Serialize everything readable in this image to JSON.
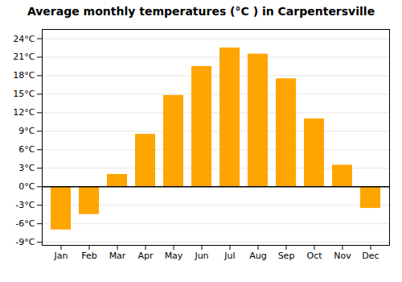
{
  "chart_data": {
    "type": "bar",
    "title": "Average monthly temperatures (°C ) in Carpentersville",
    "categories": [
      "Jan",
      "Feb",
      "Mar",
      "Apr",
      "May",
      "Jun",
      "Jul",
      "Aug",
      "Sep",
      "Oct",
      "Nov",
      "Dec"
    ],
    "values": [
      -7.0,
      -4.5,
      2.0,
      8.5,
      14.8,
      19.5,
      22.5,
      21.5,
      17.5,
      11.0,
      3.5,
      -3.5
    ],
    "color": "#FFA500",
    "ylim": [
      -9.5,
      25.5
    ],
    "yticks": [
      {
        "value": -9,
        "label": "-9°C"
      },
      {
        "value": -6,
        "label": "-6°C"
      },
      {
        "value": -3,
        "label": "-3°C"
      },
      {
        "value": 0,
        "label": "0°C"
      },
      {
        "value": 3,
        "label": "3°C"
      },
      {
        "value": 6,
        "label": "6°C"
      },
      {
        "value": 9,
        "label": "9°C"
      },
      {
        "value": 12,
        "label": "12°C"
      },
      {
        "value": 15,
        "label": "15°C"
      },
      {
        "value": 18,
        "label": "18°C"
      },
      {
        "value": 21,
        "label": "21°C"
      },
      {
        "value": 24,
        "label": "24°C"
      }
    ],
    "grid": true
  }
}
